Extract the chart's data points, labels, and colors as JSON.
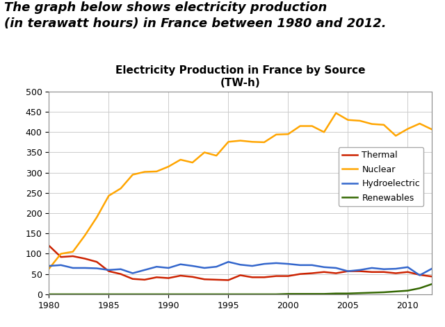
{
  "title_line1": "Electricity Production in France by Source",
  "title_line2": "(TW-h)",
  "header_text": "The graph below shows electricity production\n(in terawatt hours) in France between 1980 and 2012.",
  "years": [
    1980,
    1981,
    1982,
    1983,
    1984,
    1985,
    1986,
    1987,
    1988,
    1989,
    1990,
    1991,
    1992,
    1993,
    1994,
    1995,
    1996,
    1997,
    1998,
    1999,
    2000,
    2001,
    2002,
    2003,
    2004,
    2005,
    2006,
    2007,
    2008,
    2009,
    2010,
    2011,
    2012
  ],
  "thermal": [
    120,
    92,
    94,
    88,
    80,
    57,
    50,
    38,
    36,
    42,
    40,
    46,
    43,
    37,
    36,
    35,
    47,
    42,
    42,
    45,
    45,
    50,
    52,
    55,
    52,
    57,
    57,
    55,
    55,
    52,
    55,
    48,
    44
  ],
  "nuclear": [
    63,
    100,
    105,
    145,
    190,
    243,
    261,
    295,
    302,
    303,
    315,
    332,
    325,
    350,
    342,
    376,
    379,
    376,
    375,
    394,
    395,
    415,
    415,
    400,
    447,
    430,
    428,
    420,
    418,
    391,
    408,
    421,
    407
  ],
  "hydro": [
    70,
    72,
    65,
    65,
    64,
    60,
    62,
    52,
    60,
    68,
    65,
    74,
    70,
    65,
    68,
    80,
    73,
    70,
    75,
    77,
    75,
    72,
    72,
    67,
    65,
    57,
    60,
    65,
    62,
    63,
    67,
    47,
    63
  ],
  "renewables": [
    0,
    0,
    0,
    0,
    0,
    0,
    0,
    0,
    0,
    0,
    0,
    0,
    0,
    0,
    0,
    0,
    0,
    0,
    0,
    0,
    1,
    1,
    1,
    1,
    2,
    2,
    3,
    4,
    5,
    7,
    9,
    15,
    25
  ],
  "thermal_color": "#CC2200",
  "nuclear_color": "#FFA500",
  "hydro_color": "#3366CC",
  "renewables_color": "#336600",
  "ylim": [
    0,
    500
  ],
  "yticks": [
    0,
    50,
    100,
    150,
    200,
    250,
    300,
    350,
    400,
    450,
    500
  ],
  "xticks": [
    1980,
    1985,
    1990,
    1995,
    2000,
    2005,
    2010
  ],
  "grid_color": "#cccccc",
  "bg_color": "#ffffff",
  "line_width": 1.8,
  "header_fontsize": 13,
  "title_fontsize": 11,
  "tick_fontsize": 9,
  "legend_fontsize": 9
}
